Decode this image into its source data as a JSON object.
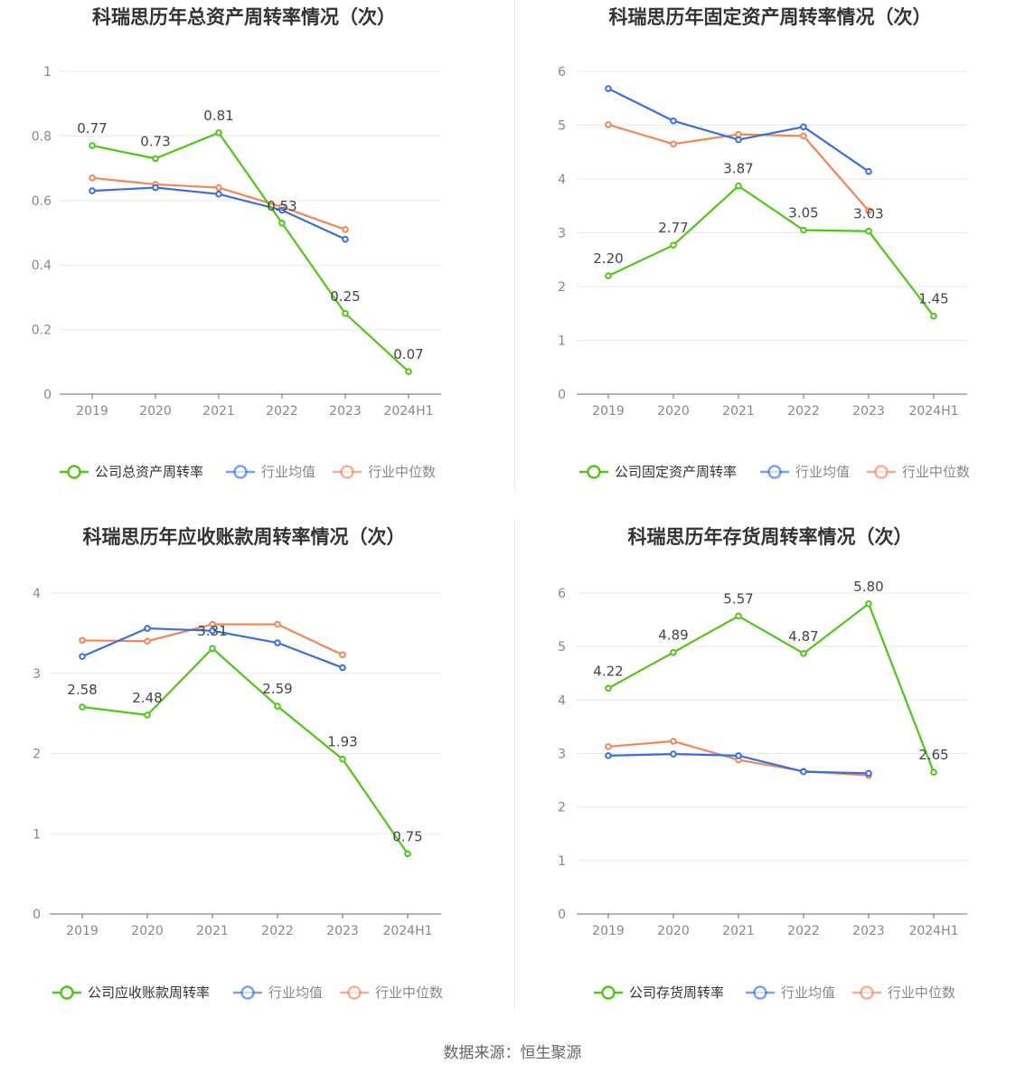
{
  "source_label": "数据来源：恒生聚源",
  "colors": {
    "company": "#52c41a",
    "industry_avg": "#3b6fd8",
    "industry_median": "#f0875a",
    "axis": "#666666",
    "grid": "#e6e9f0",
    "title": "#333333"
  },
  "chart_data": [
    {
      "type": "line",
      "title": "科瑞思历年总资产周转率情况（次）",
      "categories": [
        "2019",
        "2020",
        "2021",
        "2022",
        "2023",
        "2024H1"
      ],
      "ylim": [
        0,
        1
      ],
      "yticks": [
        "0",
        "0.2",
        "0.4",
        "0.6",
        "0.8",
        "1"
      ],
      "ytick_values": [
        0,
        0.2,
        0.4,
        0.6,
        0.8,
        1
      ],
      "legend_position": "bottom",
      "series": [
        {
          "name": "公司总资产周转率",
          "values": [
            0.77,
            0.73,
            0.81,
            0.53,
            0.25,
            0.07
          ],
          "labels": [
            "0.77",
            "0.73",
            "0.81",
            "0.53",
            "0.25",
            "0.07"
          ]
        },
        {
          "name": "行业均值",
          "values": [
            0.63,
            0.64,
            0.62,
            0.57,
            0.48,
            null
          ]
        },
        {
          "name": "行业中位数",
          "values": [
            0.67,
            0.65,
            0.64,
            0.58,
            0.51,
            null
          ]
        }
      ]
    },
    {
      "type": "line",
      "title": "科瑞思历年固定资产周转率情况（次）",
      "categories": [
        "2019",
        "2020",
        "2021",
        "2022",
        "2023",
        "2024H1"
      ],
      "ylim": [
        0,
        6
      ],
      "yticks": [
        "0",
        "1",
        "2",
        "3",
        "4",
        "5",
        "6"
      ],
      "ytick_values": [
        0,
        1,
        2,
        3,
        4,
        5,
        6
      ],
      "legend_position": "bottom",
      "series": [
        {
          "name": "公司固定资产周转率",
          "values": [
            2.2,
            2.77,
            3.87,
            3.05,
            3.03,
            1.45
          ],
          "labels": [
            "2.20",
            "2.77",
            "3.87",
            "3.05",
            "3.03",
            "1.45"
          ]
        },
        {
          "name": "行业均值",
          "values": [
            5.68,
            5.08,
            4.73,
            4.97,
            4.14,
            null
          ]
        },
        {
          "name": "行业中位数",
          "values": [
            5.01,
            4.65,
            4.83,
            4.8,
            3.41,
            null
          ]
        }
      ]
    },
    {
      "type": "line",
      "title": "科瑞思历年应收账款周转率情况（次）",
      "categories": [
        "2019",
        "2020",
        "2021",
        "2022",
        "2023",
        "2024H1"
      ],
      "ylim": [
        0,
        4
      ],
      "yticks": [
        "0",
        "1",
        "2",
        "3",
        "4"
      ],
      "ytick_values": [
        0,
        1,
        2,
        3,
        4
      ],
      "legend_position": "bottom",
      "series": [
        {
          "name": "公司应收账款周转率",
          "values": [
            2.58,
            2.48,
            3.31,
            2.59,
            1.93,
            0.75
          ],
          "labels": [
            "2.58",
            "2.48",
            "3.31",
            "2.59",
            "1.93",
            "0.75"
          ]
        },
        {
          "name": "行业均值",
          "values": [
            3.21,
            3.56,
            3.53,
            3.38,
            3.07,
            null
          ]
        },
        {
          "name": "行业中位数",
          "values": [
            3.41,
            3.4,
            3.61,
            3.61,
            3.23,
            null
          ]
        }
      ]
    },
    {
      "type": "line",
      "title": "科瑞思历年存货周转率情况（次）",
      "categories": [
        "2019",
        "2020",
        "2021",
        "2022",
        "2023",
        "2024H1"
      ],
      "ylim": [
        0,
        6
      ],
      "yticks": [
        "0",
        "1",
        "2",
        "3",
        "4",
        "5",
        "6"
      ],
      "ytick_values": [
        0,
        1,
        2,
        3,
        4,
        5,
        6
      ],
      "legend_position": "bottom",
      "series": [
        {
          "name": "公司存货周转率",
          "values": [
            4.22,
            4.89,
            5.57,
            4.87,
            5.8,
            2.65
          ],
          "labels": [
            "4.22",
            "4.89",
            "5.57",
            "4.87",
            "5.80",
            "2.65"
          ]
        },
        {
          "name": "行业均值",
          "values": [
            2.96,
            2.99,
            2.96,
            2.66,
            2.63,
            null
          ]
        },
        {
          "name": "行业中位数",
          "values": [
            3.13,
            3.23,
            2.88,
            2.67,
            2.59,
            null
          ]
        }
      ]
    }
  ]
}
